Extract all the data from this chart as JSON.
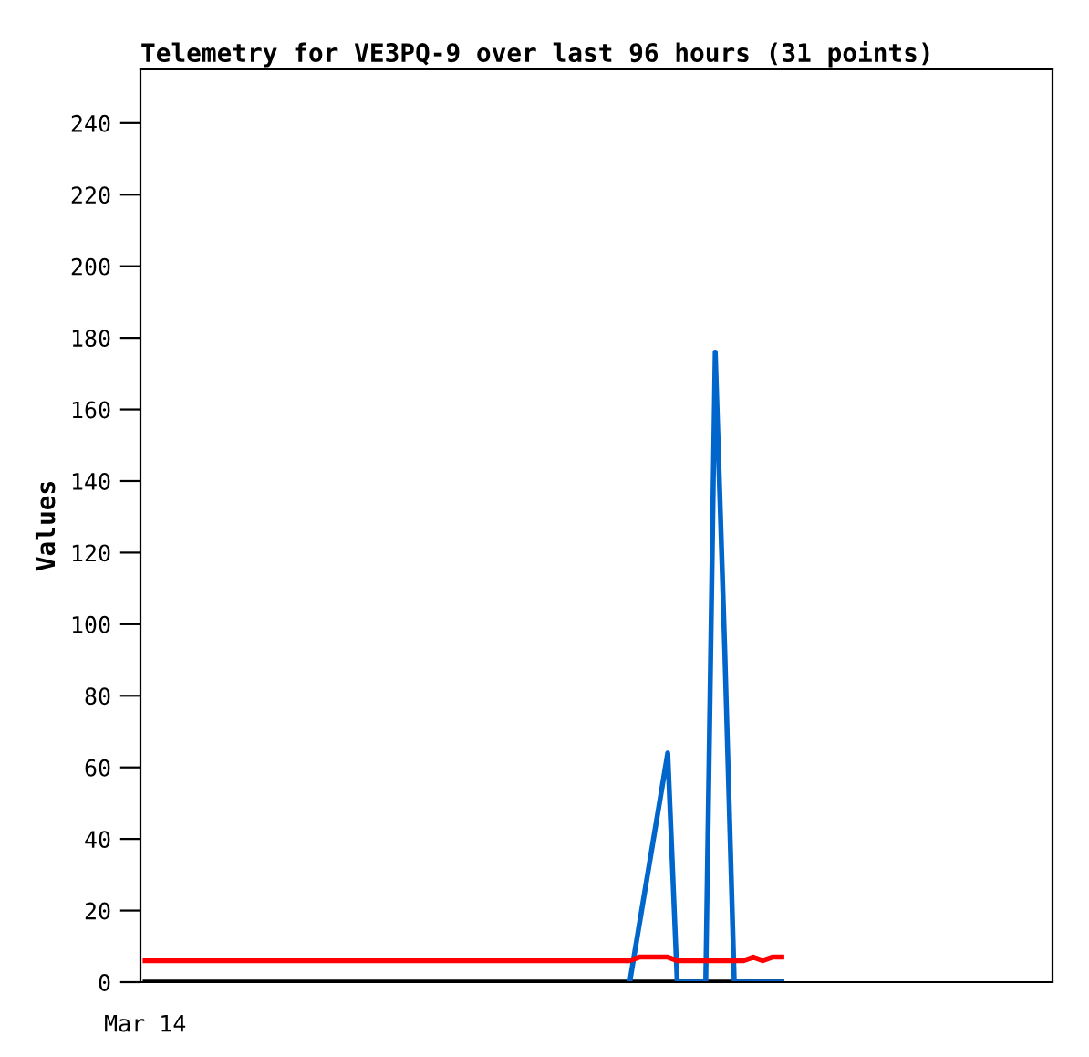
{
  "chart_data": {
    "type": "line",
    "title": "Telemetry for VE3PQ-9 over last 96 hours (31 points)",
    "ylabel": "Values",
    "categories": [
      null,
      null,
      null,
      null,
      null,
      null,
      null,
      null,
      null,
      null,
      null,
      null,
      null,
      null,
      null,
      null,
      null,
      null,
      null,
      null,
      null,
      null,
      null,
      null,
      null,
      null,
      null,
      null,
      null,
      null,
      null,
      null,
      null,
      null,
      null,
      null,
      null,
      null,
      null,
      null,
      null,
      null,
      null,
      null,
      null,
      null,
      null,
      null,
      null,
      null,
      null,
      null,
      null,
      null,
      null,
      null,
      null,
      null,
      null,
      null,
      null,
      null,
      null,
      null,
      null,
      null,
      null,
      null,
      null,
      null,
      null,
      null,
      null,
      null,
      null,
      null,
      null,
      null,
      null,
      null,
      null,
      null,
      null,
      null,
      null,
      null,
      null,
      null,
      null,
      null,
      null,
      null,
      null,
      null,
      null,
      null
    ],
    "series": [
      {
        "color": "#000000",
        "values": [
          0,
          0,
          0,
          0,
          0,
          0,
          0,
          0,
          0,
          0,
          0,
          0,
          0,
          0,
          0,
          0,
          0,
          0,
          0,
          0,
          0,
          0,
          0,
          0,
          0,
          0,
          0,
          0,
          0,
          0,
          0,
          0,
          0,
          0,
          0,
          0,
          0,
          0,
          0,
          0,
          0,
          0,
          0,
          0,
          0,
          0,
          0,
          0,
          0,
          0,
          0,
          0,
          0,
          0,
          0,
          0,
          0,
          0,
          0,
          0,
          0,
          0,
          0,
          0,
          0,
          0,
          0,
          0,
          null,
          null,
          null,
          null,
          null,
          null,
          null,
          null,
          null,
          null,
          null,
          null,
          null,
          null,
          null,
          null,
          null,
          null,
          null,
          null,
          null,
          null,
          null,
          null,
          null,
          null,
          null,
          null
        ]
      },
      {
        "color": "#0066cc",
        "values": [
          null,
          null,
          null,
          null,
          null,
          null,
          null,
          null,
          null,
          null,
          null,
          null,
          null,
          null,
          null,
          null,
          null,
          null,
          null,
          null,
          null,
          null,
          null,
          null,
          null,
          null,
          null,
          null,
          null,
          null,
          null,
          null,
          null,
          null,
          null,
          null,
          null,
          null,
          null,
          null,
          null,
          null,
          null,
          null,
          null,
          null,
          null,
          null,
          null,
          null,
          null,
          0,
          16,
          32,
          48,
          64,
          0,
          0,
          0,
          0,
          176,
          93,
          0,
          0,
          0,
          0,
          0,
          0,
          null,
          null,
          null,
          null,
          null,
          null,
          null,
          null,
          null,
          null,
          null,
          null,
          null,
          null,
          null,
          null,
          null,
          null,
          null,
          null,
          null,
          null,
          null,
          null,
          null,
          null,
          null,
          null
        ]
      },
      {
        "color": "#ff0000",
        "values": [
          6,
          6,
          6,
          6,
          6,
          6,
          6,
          6,
          6,
          6,
          6,
          6,
          6,
          6,
          6,
          6,
          6,
          6,
          6,
          6,
          6,
          6,
          6,
          6,
          6,
          6,
          6,
          6,
          6,
          6,
          6,
          6,
          6,
          6,
          6,
          6,
          6,
          6,
          6,
          6,
          6,
          6,
          6,
          6,
          6,
          6,
          6,
          6,
          6,
          6,
          6,
          6,
          7,
          7,
          7,
          7,
          6,
          6,
          6,
          6,
          6,
          6,
          6,
          6,
          7,
          6,
          7,
          7,
          null,
          null,
          null,
          null,
          null,
          null,
          null,
          null,
          null,
          null,
          null,
          null,
          null,
          null,
          null,
          null,
          null,
          null,
          null,
          null,
          null,
          null,
          null,
          null,
          null,
          null,
          null,
          null
        ]
      }
    ],
    "annotations": [
      "Mar 14"
    ],
    "ylim": [
      0,
      255
    ],
    "yticks": [
      0,
      20,
      40,
      60,
      80,
      100,
      120,
      140,
      160,
      180,
      200,
      220,
      240
    ],
    "grid": false,
    "legend": false,
    "marker": "none",
    "line_style": "solid"
  }
}
